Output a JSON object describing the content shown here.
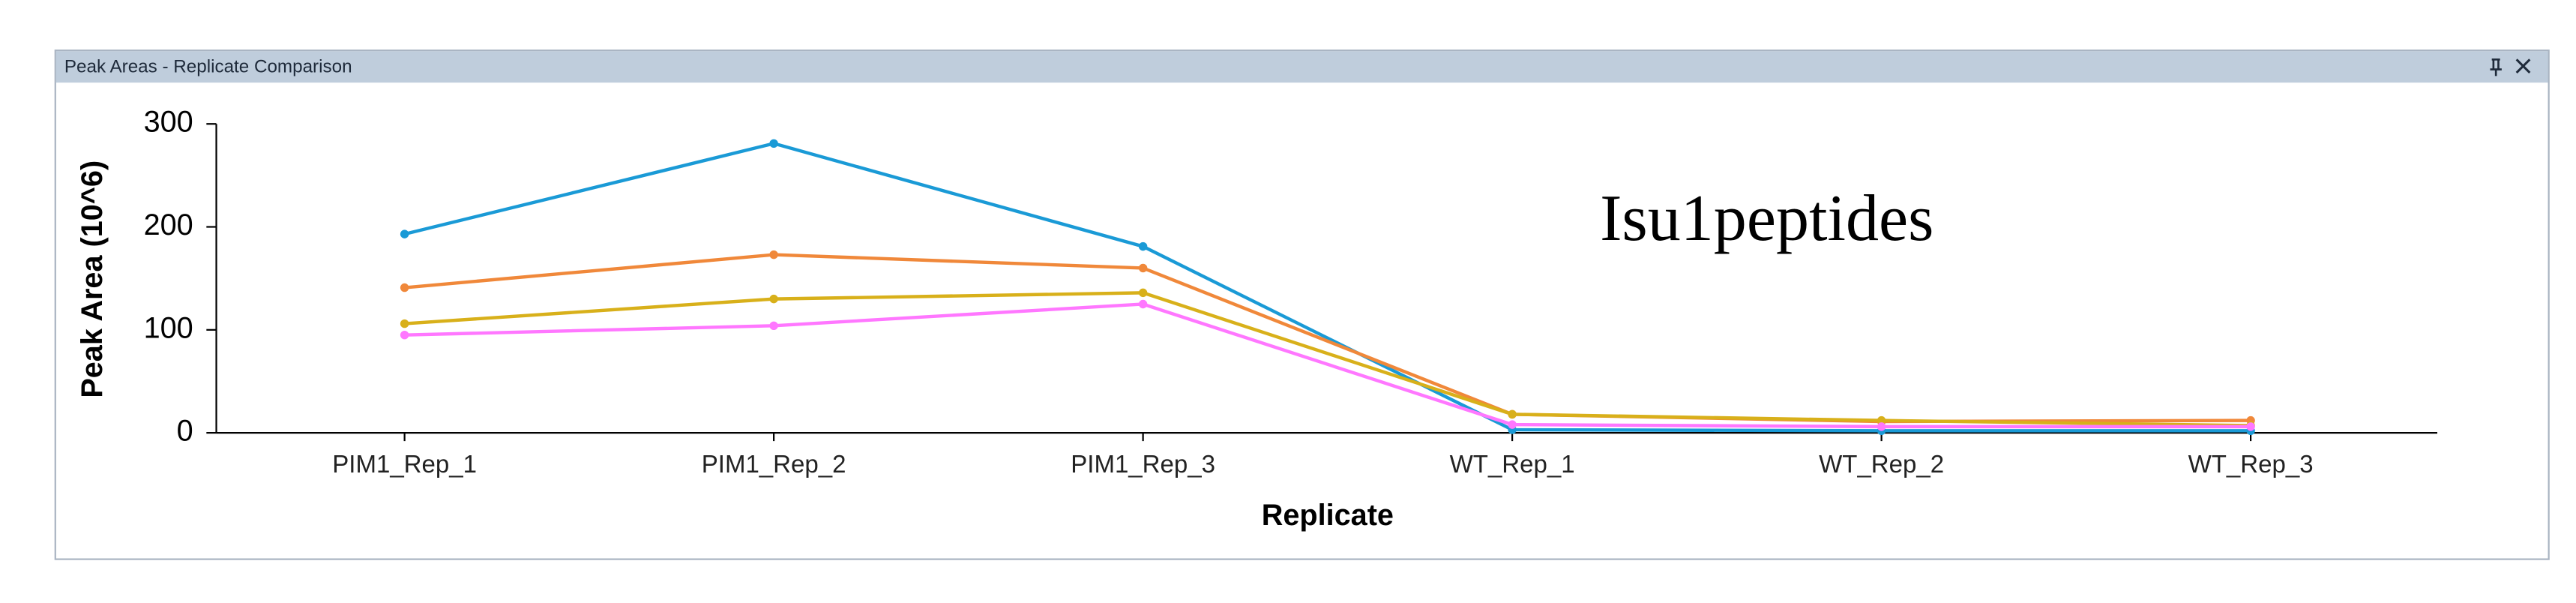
{
  "window_title": "Peak Areas - Replicate Comparison",
  "chart_data": {
    "type": "line",
    "annotation": "Isu1peptides",
    "x_label": "Replicate",
    "y_label": "Peak Area (10^6)",
    "categories": [
      "PIM1_Rep_1",
      "PIM1_Rep_2",
      "PIM1_Rep_3",
      "WT_Rep_1",
      "WT_Rep_2",
      "WT_Rep_3"
    ],
    "series": [
      {
        "color": "#1a9ad6",
        "values": [
          193,
          281,
          181,
          3,
          2,
          2
        ]
      },
      {
        "color": "#f0883a",
        "values": [
          141,
          173,
          160,
          18,
          11,
          12
        ]
      },
      {
        "color": "#d8b01a",
        "values": [
          106,
          130,
          136,
          18,
          12,
          7
        ]
      },
      {
        "color": "#ff77ff",
        "values": [
          95,
          104,
          125,
          8,
          6,
          6
        ]
      }
    ],
    "ylim": [
      0,
      300
    ],
    "yticks": [
      0,
      100,
      200,
      300
    ]
  }
}
